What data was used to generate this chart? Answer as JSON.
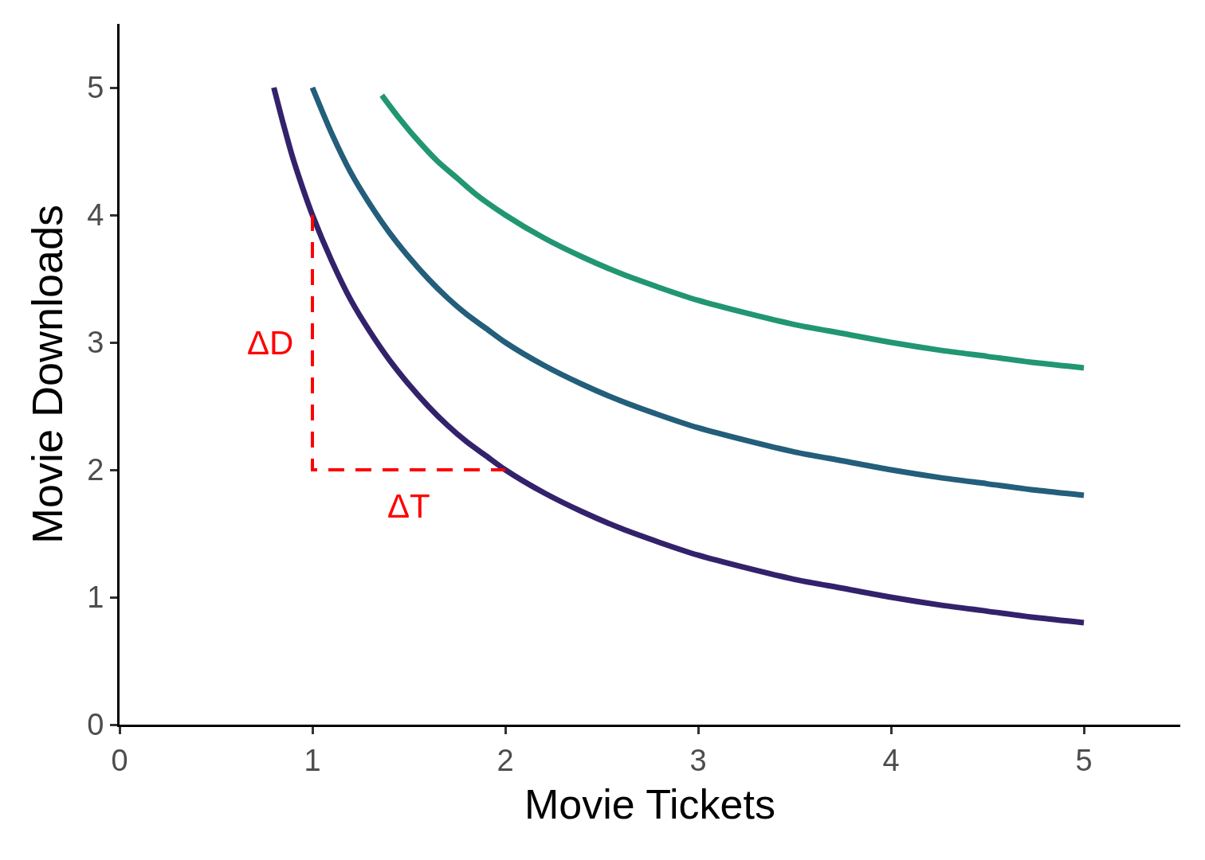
{
  "chart_data": {
    "type": "line",
    "xlabel": "Movie Tickets",
    "ylabel": "Movie Downloads",
    "xlim": [
      0,
      5.5
    ],
    "xticks": [
      0,
      1,
      2,
      3,
      4,
      5
    ],
    "ylim": [
      0,
      5.5
    ],
    "yticks": [
      0,
      1,
      2,
      3,
      4,
      5
    ],
    "grid": false,
    "marker": "none",
    "line_style": "solid",
    "series": [
      {
        "color": "#33226b",
        "x": [
          0.8,
          0.85,
          0.9,
          0.95,
          1,
          1.1,
          1.2,
          1.3,
          1.4,
          1.5,
          1.6,
          1.7,
          1.8,
          1.9,
          2,
          2.2,
          2.4,
          2.6,
          2.8,
          3,
          3.25,
          3.5,
          3.75,
          4,
          4.25,
          4.5,
          4.75,
          5
        ],
        "values": [
          5,
          4.71,
          4.44,
          4.21,
          4,
          3.64,
          3.33,
          3.08,
          2.86,
          2.67,
          2.5,
          2.35,
          2.22,
          2.11,
          2,
          1.82,
          1.67,
          1.54,
          1.43,
          1.33,
          1.23,
          1.14,
          1.07,
          1,
          0.94,
          0.89,
          0.84,
          0.8
        ]
      },
      {
        "color": "#235e7b",
        "x": [
          1,
          1.1,
          1.2,
          1.3,
          1.4,
          1.5,
          1.6,
          1.7,
          1.8,
          1.9,
          2,
          2.2,
          2.4,
          2.6,
          2.8,
          3,
          3.25,
          3.5,
          3.75,
          4,
          4.25,
          4.5,
          4.75,
          5
        ],
        "values": [
          5,
          4.64,
          4.33,
          4.08,
          3.86,
          3.67,
          3.5,
          3.35,
          3.22,
          3.11,
          3,
          2.82,
          2.67,
          2.54,
          2.43,
          2.33,
          2.23,
          2.14,
          2.07,
          2,
          1.94,
          1.89,
          1.84,
          1.8
        ]
      },
      {
        "color": "#219672",
        "x": [
          1.36,
          1.45,
          1.55,
          1.65,
          1.75,
          1.85,
          2,
          2.2,
          2.4,
          2.6,
          2.8,
          3,
          3.25,
          3.5,
          3.75,
          4,
          4.25,
          4.5,
          4.75,
          5
        ],
        "values": [
          4.94,
          4.76,
          4.58,
          4.42,
          4.29,
          4.16,
          4,
          3.82,
          3.67,
          3.54,
          3.43,
          3.33,
          3.23,
          3.14,
          3.07,
          3,
          2.94,
          2.89,
          2.84,
          2.8
        ]
      },
      {
        "color": "#ff0000",
        "line_style": "dashed",
        "x": [
          1,
          1,
          2
        ],
        "values": [
          4,
          2,
          2
        ]
      }
    ],
    "annotations": [
      {
        "text": "ΔD",
        "x": 1,
        "y": 3
      },
      {
        "text": "ΔT",
        "x": 1.5,
        "y": 2
      }
    ]
  }
}
